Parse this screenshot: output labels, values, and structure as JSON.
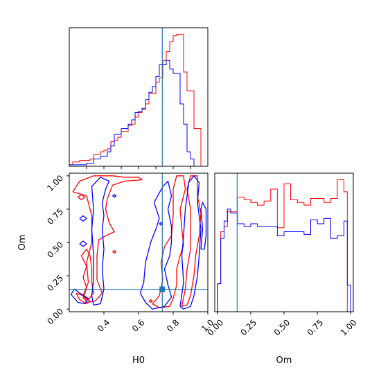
{
  "chart_data": [
    {
      "type": "histogram",
      "panel": "H0-marginal",
      "xlim": [
        0.2,
        1.0
      ],
      "bin_edges": [
        0.2,
        0.22,
        0.24,
        0.26,
        0.28,
        0.3,
        0.32,
        0.34,
        0.36,
        0.38,
        0.4,
        0.42,
        0.44,
        0.46,
        0.48,
        0.5,
        0.52,
        0.54,
        0.56,
        0.58,
        0.6,
        0.62,
        0.64,
        0.66,
        0.68,
        0.7,
        0.72,
        0.74,
        0.76,
        0.78,
        0.8,
        0.82,
        0.84,
        0.86,
        0.88,
        0.9,
        0.92,
        0.94,
        0.96,
        0.98,
        1.0
      ],
      "truth": 0.737,
      "series": [
        {
          "color": "#ff0000",
          "values": [
            0.01,
            0.03,
            0.03,
            0.04,
            0.04,
            0.04,
            0.05,
            0.08,
            0.08,
            0.1,
            0.11,
            0.12,
            0.17,
            0.18,
            0.2,
            0.24,
            0.24,
            0.28,
            0.29,
            0.34,
            0.37,
            0.39,
            0.43,
            0.5,
            0.5,
            0.58,
            0.61,
            0.73,
            0.79,
            0.86,
            0.9,
            0.91,
            0.91,
            0.65,
            0.52,
            0.52,
            0.26,
            0.26,
            0.0,
            0.0
          ]
        },
        {
          "color": "#0000ff",
          "values": [
            0.01,
            0.01,
            0.01,
            0.01,
            0.01,
            0.02,
            0.02,
            0.05,
            0.05,
            0.07,
            0.07,
            0.1,
            0.14,
            0.22,
            0.22,
            0.26,
            0.26,
            0.29,
            0.32,
            0.37,
            0.38,
            0.4,
            0.46,
            0.51,
            0.55,
            0.62,
            0.7,
            0.7,
            0.73,
            0.67,
            0.64,
            0.64,
            0.43,
            0.29,
            0.1,
            0.05,
            0.0,
            0.0,
            0.0,
            0.0
          ]
        }
      ]
    },
    {
      "type": "contour",
      "panel": "H0-Om-joint",
      "xlabel": "H0",
      "ylabel": "Om",
      "xlim": [
        0.2,
        1.0
      ],
      "ylim": [
        -0.02,
        1.02
      ],
      "x_ticks": [
        "0.4",
        "0.6",
        "0.8",
        "1.0"
      ],
      "y_ticks": [
        "0.00",
        "0.25",
        "0.50",
        "0.75",
        "1.00"
      ],
      "truth": [
        0.737,
        0.148
      ],
      "series": [
        {
          "color": "#ff0000",
          "contours": [
            [
              [
                0.28,
                0.08
              ],
              [
                0.3,
                0.16
              ],
              [
                0.28,
                0.24
              ],
              [
                0.3,
                0.32
              ],
              [
                0.27,
                0.4
              ],
              [
                0.3,
                0.45
              ],
              [
                0.32,
                0.4
              ],
              [
                0.33,
                0.3
              ],
              [
                0.33,
                0.2
              ],
              [
                0.34,
                0.12
              ],
              [
                0.31,
                0.07
              ],
              [
                0.28,
                0.08
              ]
            ],
            [
              [
                0.22,
                0.88
              ],
              [
                0.26,
                0.96
              ],
              [
                0.34,
                1.0
              ],
              [
                0.45,
                1.0
              ],
              [
                0.52,
                0.99
              ],
              [
                0.6,
                0.99
              ],
              [
                0.62,
                0.97
              ],
              [
                0.52,
                0.96
              ],
              [
                0.45,
                0.93
              ],
              [
                0.42,
                0.83
              ],
              [
                0.41,
                0.75
              ],
              [
                0.43,
                0.65
              ],
              [
                0.46,
                0.58
              ],
              [
                0.41,
                0.55
              ],
              [
                0.37,
                0.52
              ],
              [
                0.36,
                0.4
              ],
              [
                0.36,
                0.22
              ],
              [
                0.39,
                0.12
              ],
              [
                0.35,
                0.06
              ],
              [
                0.3,
                0.05
              ],
              [
                0.28,
                0.1
              ],
              [
                0.31,
                0.2
              ],
              [
                0.3,
                0.35
              ],
              [
                0.33,
                0.5
              ],
              [
                0.33,
                0.7
              ],
              [
                0.3,
                0.85
              ],
              [
                0.22,
                0.88
              ]
            ],
            [
              [
                0.68,
                0.04
              ],
              [
                0.72,
                0.1
              ],
              [
                0.74,
                0.22
              ],
              [
                0.73,
                0.35
              ],
              [
                0.75,
                0.47
              ],
              [
                0.79,
                0.55
              ],
              [
                0.8,
                0.7
              ],
              [
                0.8,
                0.9
              ],
              [
                0.82,
                1.0
              ],
              [
                0.86,
                1.0
              ],
              [
                0.87,
                0.9
              ],
              [
                0.84,
                0.75
              ],
              [
                0.85,
                0.6
              ],
              [
                0.86,
                0.48
              ],
              [
                0.84,
                0.4
              ],
              [
                0.82,
                0.3
              ],
              [
                0.82,
                0.18
              ],
              [
                0.8,
                0.08
              ],
              [
                0.78,
                0.02
              ],
              [
                0.72,
                0.01
              ],
              [
                0.68,
                0.04
              ]
            ],
            [
              [
                0.85,
                0.02
              ],
              [
                0.87,
                0.15
              ],
              [
                0.88,
                0.3
              ],
              [
                0.9,
                0.45
              ],
              [
                0.9,
                0.6
              ],
              [
                0.9,
                0.75
              ],
              [
                0.88,
                0.9
              ],
              [
                0.9,
                1.0
              ],
              [
                0.94,
                1.0
              ],
              [
                0.94,
                0.85
              ],
              [
                0.96,
                0.72
              ],
              [
                0.95,
                0.55
              ],
              [
                0.93,
                0.4
              ],
              [
                0.92,
                0.25
              ],
              [
                0.9,
                0.1
              ],
              [
                0.88,
                0.03
              ],
              [
                0.85,
                0.02
              ]
            ],
            [
              [
                0.25,
                0.84
              ],
              [
                0.27,
                0.86
              ],
              [
                0.29,
                0.84
              ],
              [
                0.27,
                0.82
              ],
              [
                0.25,
                0.84
              ]
            ],
            [
              [
                0.45,
                0.43
              ],
              [
                0.46,
                0.44
              ],
              [
                0.47,
                0.43
              ],
              [
                0.46,
                0.42
              ],
              [
                0.45,
                0.43
              ]
            ],
            [
              [
                0.66,
                0.06
              ],
              [
                0.67,
                0.07
              ],
              [
                0.68,
                0.06
              ],
              [
                0.67,
                0.05
              ],
              [
                0.66,
                0.06
              ]
            ],
            [
              [
                0.24,
                0.12
              ],
              [
                0.28,
                0.1
              ],
              [
                0.32,
                0.06
              ],
              [
                0.3,
                0.04
              ],
              [
                0.26,
                0.07
              ],
              [
                0.24,
                0.12
              ]
            ]
          ]
        },
        {
          "color": "#0000ff",
          "contours": [
            [
              [
                0.21,
                0.11
              ],
              [
                0.25,
                0.05
              ],
              [
                0.29,
                0.04
              ],
              [
                0.31,
                0.08
              ],
              [
                0.26,
                0.12
              ],
              [
                0.23,
                0.15
              ],
              [
                0.21,
                0.11
              ]
            ],
            [
              [
                0.33,
                0.1
              ],
              [
                0.34,
                0.22
              ],
              [
                0.34,
                0.4
              ],
              [
                0.33,
                0.6
              ],
              [
                0.34,
                0.75
              ],
              [
                0.33,
                0.92
              ],
              [
                0.38,
                0.99
              ],
              [
                0.43,
                0.96
              ],
              [
                0.41,
                0.9
              ],
              [
                0.39,
                0.8
              ],
              [
                0.4,
                0.7
              ],
              [
                0.39,
                0.6
              ],
              [
                0.4,
                0.45
              ],
              [
                0.39,
                0.3
              ],
              [
                0.4,
                0.15
              ],
              [
                0.38,
                0.04
              ],
              [
                0.34,
                0.03
              ],
              [
                0.33,
                0.1
              ]
            ],
            [
              [
                0.61,
                0.12
              ],
              [
                0.63,
                0.2
              ],
              [
                0.64,
                0.35
              ],
              [
                0.67,
                0.5
              ],
              [
                0.7,
                0.6
              ],
              [
                0.72,
                0.68
              ],
              [
                0.69,
                0.8
              ],
              [
                0.74,
                0.92
              ],
              [
                0.77,
                0.96
              ],
              [
                0.79,
                0.85
              ],
              [
                0.77,
                0.75
              ],
              [
                0.79,
                0.62
              ],
              [
                0.79,
                0.5
              ],
              [
                0.78,
                0.4
              ],
              [
                0.75,
                0.3
              ],
              [
                0.77,
                0.18
              ],
              [
                0.79,
                0.09
              ],
              [
                0.75,
                0.02
              ],
              [
                0.68,
                0.0
              ],
              [
                0.64,
                0.05
              ],
              [
                0.61,
                0.12
              ]
            ],
            [
              [
                0.84,
                0.02
              ],
              [
                0.86,
                0.2
              ],
              [
                0.85,
                0.4
              ],
              [
                0.86,
                0.55
              ],
              [
                0.87,
                0.75
              ],
              [
                0.89,
                0.95
              ],
              [
                0.92,
                1.0
              ],
              [
                0.95,
                0.95
              ],
              [
                0.94,
                0.8
              ],
              [
                0.96,
                0.6
              ],
              [
                0.95,
                0.4
              ],
              [
                0.94,
                0.25
              ],
              [
                0.92,
                0.1
              ],
              [
                0.9,
                0.02
              ],
              [
                0.86,
                0.0
              ],
              [
                0.84,
                0.02
              ]
            ],
            [
              [
                0.96,
                0.45
              ],
              [
                0.97,
                0.6
              ],
              [
                0.96,
                0.75
              ],
              [
                0.97,
                0.8
              ],
              [
                0.99,
                0.75
              ],
              [
                0.99,
                0.55
              ],
              [
                0.98,
                0.45
              ],
              [
                0.96,
                0.45
              ]
            ],
            [
              [
                0.45,
                0.85
              ],
              [
                0.46,
                0.86
              ],
              [
                0.47,
                0.85
              ],
              [
                0.46,
                0.84
              ],
              [
                0.45,
                0.85
              ]
            ],
            [
              [
                0.26,
                0.68
              ],
              [
                0.28,
                0.7
              ],
              [
                0.3,
                0.68
              ],
              [
                0.28,
                0.66
              ],
              [
                0.26,
                0.68
              ]
            ],
            [
              [
                0.26,
                0.49
              ],
              [
                0.28,
                0.51
              ],
              [
                0.3,
                0.49
              ],
              [
                0.28,
                0.47
              ],
              [
                0.26,
                0.49
              ]
            ],
            [
              [
                0.72,
                0.64
              ],
              [
                0.73,
                0.65
              ],
              [
                0.74,
                0.64
              ],
              [
                0.73,
                0.63
              ],
              [
                0.72,
                0.64
              ]
            ]
          ]
        }
      ]
    },
    {
      "type": "histogram",
      "panel": "Om-marginal",
      "xlabel": "Om",
      "xlim": [
        -0.02,
        1.02
      ],
      "x_ticks": [
        "0.00",
        "0.25",
        "0.50",
        "0.75",
        "1.00"
      ],
      "bin_edges": [
        0.0,
        0.025,
        0.05,
        0.075,
        0.1,
        0.15,
        0.2,
        0.25,
        0.3,
        0.35,
        0.4,
        0.45,
        0.5,
        0.55,
        0.6,
        0.65,
        0.7,
        0.75,
        0.8,
        0.85,
        0.9,
        0.95,
        0.975,
        1.0
      ],
      "truth": 0.148,
      "series": [
        {
          "color": "#ff0000",
          "values": [
            0.21,
            0.6,
            0.64,
            0.75,
            0.75,
            0.86,
            0.84,
            0.82,
            0.8,
            0.83,
            0.92,
            0.63,
            0.96,
            0.84,
            0.82,
            0.8,
            0.85,
            0.85,
            0.82,
            0.85,
            0.99,
            0.9,
            0.0
          ]
        },
        {
          "color": "#0000ff",
          "values": [
            0.21,
            0.55,
            0.68,
            0.77,
            0.74,
            0.66,
            0.64,
            0.66,
            0.64,
            0.64,
            0.64,
            0.57,
            0.6,
            0.6,
            0.6,
            0.58,
            0.69,
            0.66,
            0.7,
            0.55,
            0.57,
            0.68,
            0.2
          ]
        }
      ]
    }
  ]
}
